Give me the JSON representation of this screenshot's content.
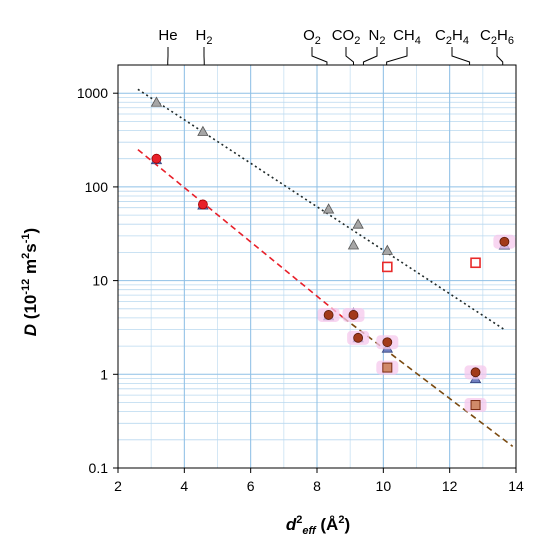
{
  "chart_data": {
    "type": "scatter",
    "x_scale": "linear",
    "y_scale": "log",
    "xlim": [
      2,
      14
    ],
    "ylim": [
      0.1,
      2000
    ],
    "x_ticks": [
      2,
      4,
      6,
      8,
      10,
      12,
      14
    ],
    "y_ticks": [
      {
        "value": 1000,
        "label": "1000"
      },
      {
        "value": 100,
        "label": "100"
      },
      {
        "value": 10,
        "label": "10"
      },
      {
        "value": 1,
        "label": "1"
      },
      {
        "value": 0.1,
        "label": "0.1"
      }
    ],
    "xlabel": {
      "base": "d",
      "sup": "2",
      "sub": "eff",
      "unit": "(Å",
      "unit_sup": "2",
      "unit_close": ")"
    },
    "ylabel": {
      "var": "D",
      "open": "(10",
      "exp": "-12",
      "mid": "m",
      "mid_sup": "2",
      "tail": "s",
      "tail_sup": "-1",
      "close": ")"
    },
    "grid": true,
    "gas_labels": [
      {
        "x": 3.5,
        "parts": [
          {
            "t": "He"
          }
        ]
      },
      {
        "x": 4.6,
        "parts": [
          {
            "t": "H"
          },
          {
            "t": "2",
            "sub": true
          }
        ]
      },
      {
        "x": 8.3,
        "parts": [
          {
            "t": "O"
          },
          {
            "t": "2",
            "sub": true
          }
        ]
      },
      {
        "x": 9.1,
        "parts": [
          {
            "t": "CO"
          },
          {
            "t": "2",
            "sub": true
          }
        ]
      },
      {
        "x": 9.4,
        "parts": [
          {
            "t": "N"
          },
          {
            "t": "2",
            "sub": true
          }
        ]
      },
      {
        "x": 10.1,
        "parts": [
          {
            "t": "CH"
          },
          {
            "t": "4",
            "sub": true
          }
        ]
      },
      {
        "x": 12.6,
        "parts": [
          {
            "t": "C"
          },
          {
            "t": "2",
            "sub": true
          },
          {
            "t": "H"
          },
          {
            "t": "4",
            "sub": true
          }
        ]
      },
      {
        "x": 13.6,
        "parts": [
          {
            "t": "C"
          },
          {
            "t": "2",
            "sub": true
          },
          {
            "t": "H"
          },
          {
            "t": "6",
            "sub": true
          }
        ]
      }
    ],
    "series": [
      {
        "marker": "triangle",
        "color": "#a6a6a6",
        "stroke": "#555555",
        "points": [
          [
            3.16,
            800
          ],
          [
            4.56,
            390
          ],
          [
            8.35,
            58
          ],
          [
            9.24,
            40
          ],
          [
            9.1,
            24
          ],
          [
            10.12,
            21
          ],
          [
            13.65,
            24
          ]
        ]
      },
      {
        "marker": "triangle",
        "color": "#6f7fc0",
        "stroke": "#33407a",
        "points": [
          [
            3.16,
            195
          ],
          [
            4.56,
            64
          ],
          [
            8.35,
            4.2
          ],
          [
            9.1,
            4.5
          ],
          [
            9.24,
            2.45
          ],
          [
            10.12,
            1.9
          ],
          [
            12.78,
            0.9
          ],
          [
            13.65,
            24
          ]
        ]
      },
      {
        "marker": "circle",
        "color": "#e8202a",
        "stroke": "#a00000",
        "points": [
          [
            3.16,
            200
          ],
          [
            4.56,
            65
          ]
        ]
      },
      {
        "marker": "circle",
        "color": "#a23a1a",
        "stroke": "#5a1a08",
        "halo": true,
        "points": [
          [
            8.35,
            4.3
          ],
          [
            9.1,
            4.3
          ],
          [
            9.24,
            2.45
          ],
          [
            10.12,
            2.2
          ],
          [
            12.78,
            1.05
          ],
          [
            13.65,
            26
          ]
        ]
      },
      {
        "marker": "square-open",
        "color": "#ffffff",
        "stroke": "#e82a2a",
        "points": [
          [
            10.12,
            14
          ],
          [
            12.78,
            15.5
          ]
        ]
      },
      {
        "marker": "square",
        "color": "#d08a6a",
        "stroke": "#7a2a10",
        "halo": true,
        "points": [
          [
            10.12,
            1.18
          ],
          [
            12.78,
            0.47
          ]
        ]
      }
    ],
    "trend_lines": [
      {
        "color": "#1f2a2a",
        "dash": "2,3",
        "points": [
          [
            2.6,
            1100
          ],
          [
            13.65,
            3.0
          ]
        ]
      },
      {
        "color": "#e8202a",
        "dash": "6,4",
        "points": [
          [
            2.6,
            250
          ],
          [
            8.8,
            4.0
          ]
        ]
      },
      {
        "color": "#7a4a10",
        "dash": "6,4",
        "points": [
          [
            8.8,
            4.0
          ],
          [
            13.9,
            0.17
          ]
        ]
      }
    ]
  }
}
